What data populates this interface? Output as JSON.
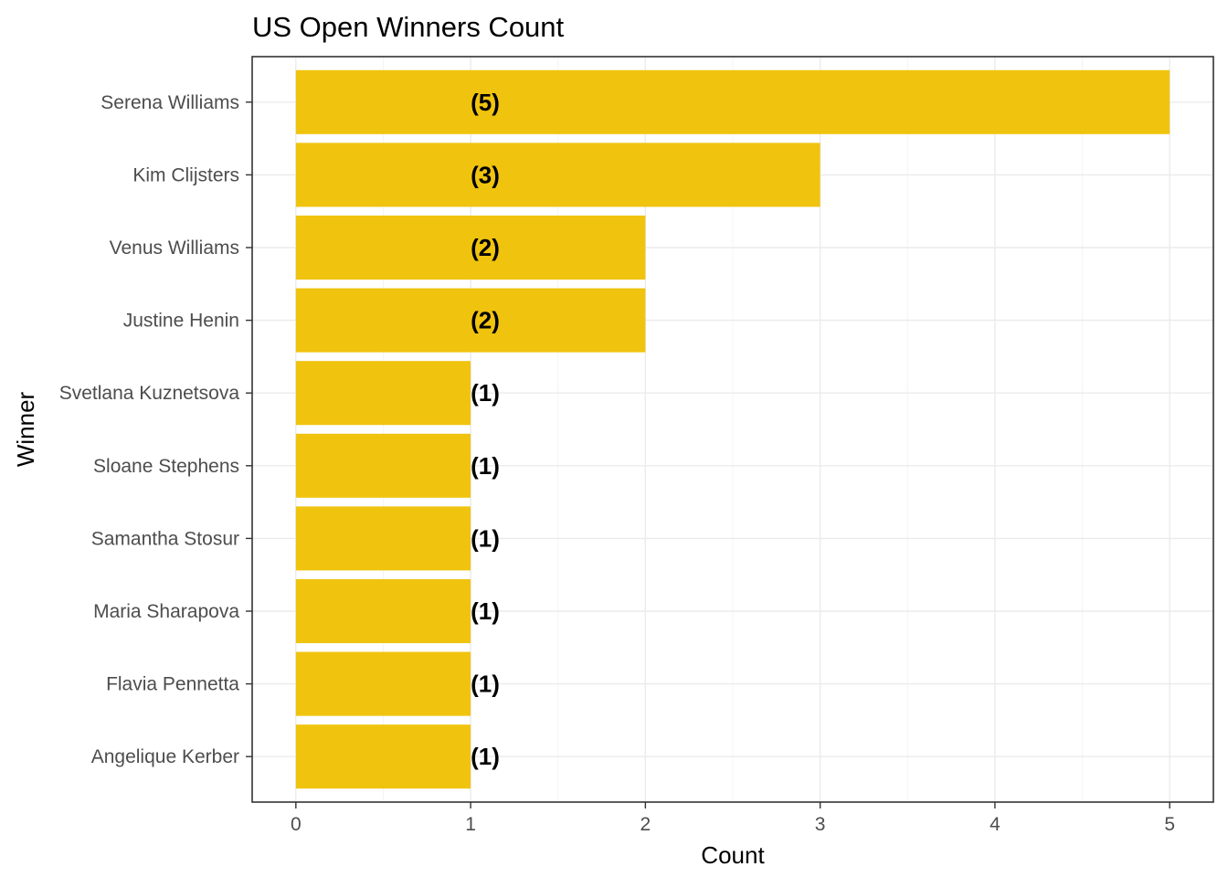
{
  "chart_data": {
    "type": "bar",
    "orientation": "horizontal",
    "title": "US Open Winners Count",
    "xlabel": "Count",
    "ylabel": "Winner",
    "categories": [
      "Serena Williams",
      "Kim Clijsters",
      "Venus Williams",
      "Justine Henin",
      "Svetlana Kuznetsova",
      "Sloane Stephens",
      "Samantha Stosur",
      "Maria Sharapova",
      "Flavia Pennetta",
      "Angelique Kerber"
    ],
    "values": [
      5,
      3,
      2,
      2,
      1,
      1,
      1,
      1,
      1,
      1
    ],
    "data_labels": [
      "(5)",
      "(3)",
      "(2)",
      "(2)",
      "(1)",
      "(1)",
      "(1)",
      "(1)",
      "(1)",
      "(1)"
    ],
    "x_ticks": [
      0,
      1,
      2,
      3,
      4,
      5
    ],
    "x_tick_labels": [
      "0",
      "1",
      "2",
      "3",
      "4",
      "5"
    ],
    "xlim": [
      -0.25,
      5.25
    ],
    "label_anchor_value": 1,
    "grid": true,
    "legend": "none",
    "bar_color": "#f0c30f",
    "panel_border_color": "#333333"
  }
}
